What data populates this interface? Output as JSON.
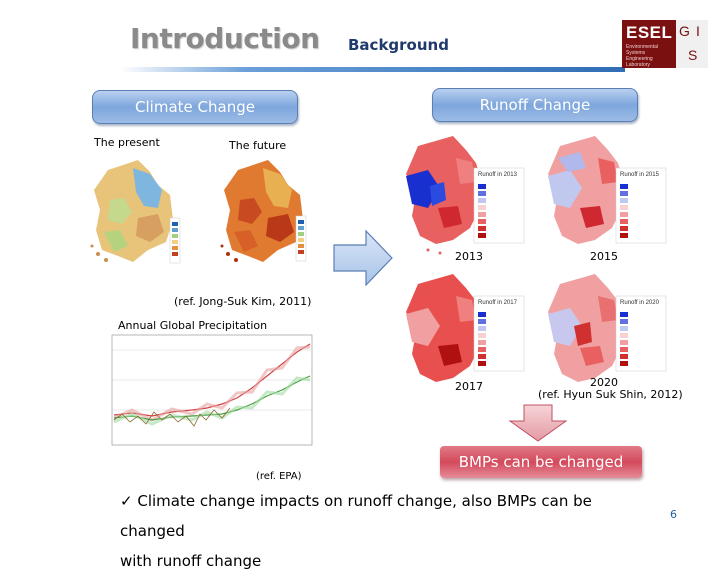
{
  "header": {
    "title": "Introduction",
    "subtitle": "Background"
  },
  "logo": {
    "text": "ESEL",
    "small_text": "Environmental Systems Engineering Laboratory",
    "letters": [
      "G",
      "I",
      "S"
    ]
  },
  "left": {
    "heading": "Climate Change",
    "present_label": "The present",
    "future_label": "The future",
    "ref": "(ref. Jong-Suk Kim, 2011)",
    "chart_title": "Annual Global Precipitation",
    "chart_ref": "(ref. EPA)"
  },
  "right": {
    "heading": "Runoff Change",
    "maps": [
      {
        "year": "2013",
        "legend_title": "Runoff in 2013"
      },
      {
        "year": "2015",
        "legend_title": "Runoff in 2015"
      },
      {
        "year": "2017",
        "legend_title": "Runoff in 2017"
      },
      {
        "year": "2020",
        "legend_title": "Runoff in 2020"
      }
    ],
    "ref": "(ref. Hyun Suk Shin, 2012)"
  },
  "bmp_box": "BMPs can be changed",
  "conclusion": {
    "check": "ü",
    "line1": "Climate change impacts on runoff change, also BMPs can be changed",
    "line2": "with runoff change"
  },
  "slide_number": "6",
  "colors": {
    "pill_blue": "#7ea6dc",
    "pill_red": "#d44a5c",
    "title_gray": "#8a8a8a",
    "logo_red": "#7a1010"
  }
}
